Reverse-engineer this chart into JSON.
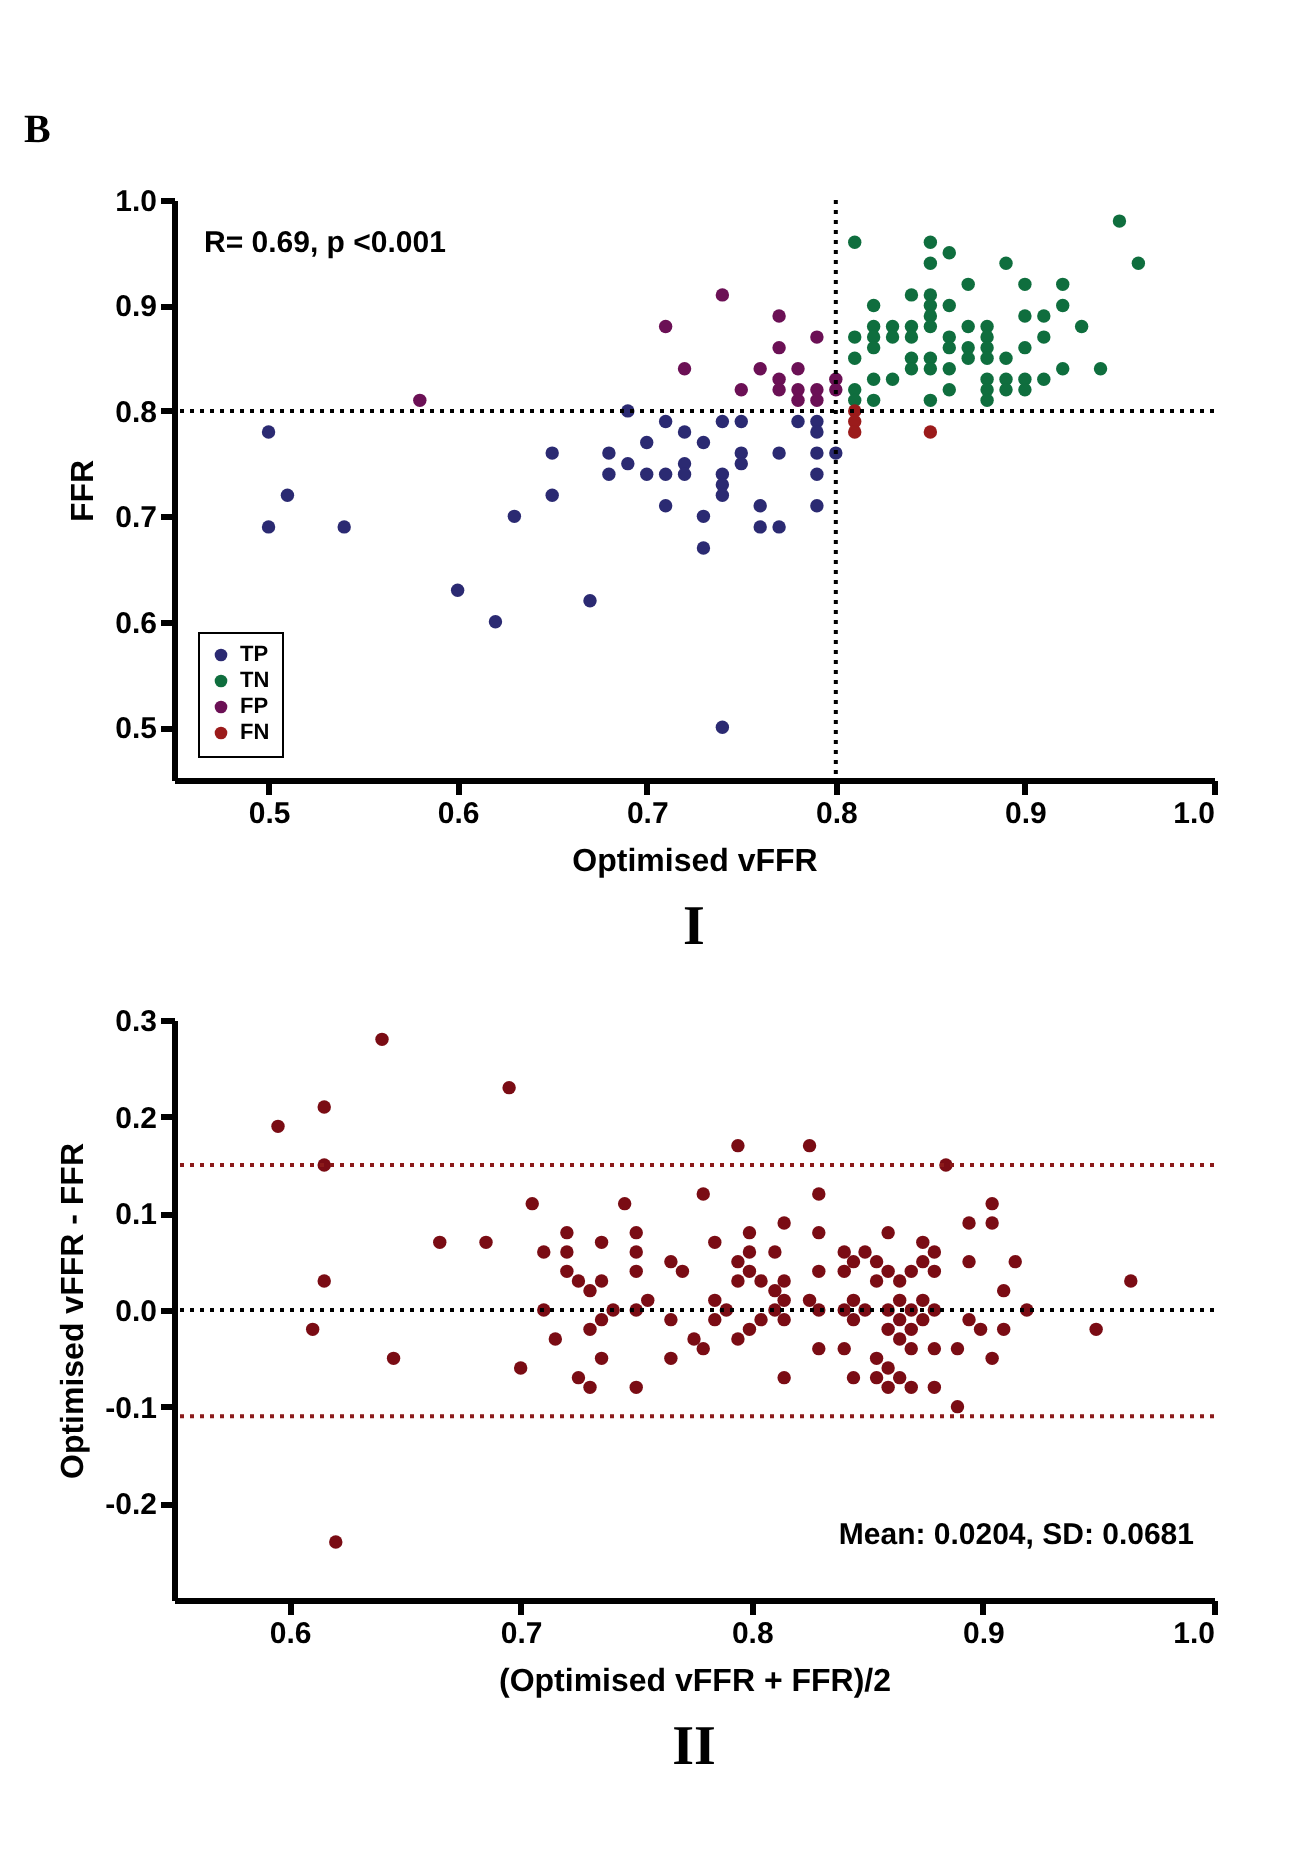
{
  "chart_data": [
    {
      "type": "scatter",
      "title": "I",
      "xlabel": "Optimised vFFR",
      "ylabel": "FFR",
      "xlim": [
        0.45,
        1.0
      ],
      "ylim": [
        0.45,
        1.0
      ],
      "xticks": [
        0.5,
        0.6,
        0.7,
        0.8,
        0.9,
        {
          "value": 1,
          "label": "1.0"
        }
      ],
      "yticks": [
        0.5,
        0.6,
        0.7,
        0.8,
        0.9,
        {
          "value": 1,
          "label": "1.0"
        }
      ],
      "grid": false,
      "legend": "bottom left",
      "marker": "circle",
      "annotations": [
        "B",
        "R= 0.69, p <0.001"
      ],
      "ref_lines": [
        {
          "axis": "x",
          "value": 0.8,
          "color": "#000000",
          "line_style": "dotted"
        },
        {
          "axis": "y",
          "value": 0.8,
          "color": "#000000",
          "line_style": "dotted"
        }
      ],
      "series": [
        {
          "name": "TP",
          "color": "#2b2a72",
          "x": [
            0.5,
            0.51,
            0.5,
            0.54,
            0.6,
            0.62,
            0.63,
            0.65,
            0.65,
            0.67,
            0.68,
            0.68,
            0.69,
            0.69,
            0.7,
            0.7,
            0.71,
            0.71,
            0.71,
            0.72,
            0.72,
            0.72,
            0.73,
            0.73,
            0.73,
            0.74,
            0.74,
            0.74,
            0.74,
            0.74,
            0.75,
            0.75,
            0.75,
            0.76,
            0.76,
            0.77,
            0.77,
            0.78,
            0.79,
            0.79,
            0.79,
            0.8,
            0.79,
            0.79
          ],
          "values": [
            0.78,
            0.72,
            0.69,
            0.69,
            0.63,
            0.6,
            0.7,
            0.76,
            0.72,
            0.62,
            0.76,
            0.74,
            0.8,
            0.75,
            0.77,
            0.74,
            0.79,
            0.74,
            0.71,
            0.78,
            0.75,
            0.74,
            0.77,
            0.7,
            0.67,
            0.79,
            0.74,
            0.73,
            0.72,
            0.5,
            0.79,
            0.76,
            0.75,
            0.71,
            0.69,
            0.76,
            0.69,
            0.79,
            0.79,
            0.78,
            0.76,
            0.76,
            0.74,
            0.71
          ]
        },
        {
          "name": "TN",
          "color": "#0f6e3e",
          "x": [
            0.81,
            0.85,
            0.85,
            0.86,
            0.89,
            0.95,
            0.96,
            0.87,
            0.9,
            0.92,
            0.84,
            0.85,
            0.85,
            0.85,
            0.85,
            0.86,
            0.82,
            0.9,
            0.91,
            0.92,
            0.93,
            0.82,
            0.82,
            0.82,
            0.81,
            0.81,
            0.81,
            0.81,
            0.83,
            0.83,
            0.84,
            0.84,
            0.86,
            0.86,
            0.87,
            0.87,
            0.88,
            0.88,
            0.88,
            0.88,
            0.87,
            0.9,
            0.91,
            0.89,
            0.84,
            0.84,
            0.85,
            0.85,
            0.86,
            0.92,
            0.94,
            0.82,
            0.83,
            0.88,
            0.88,
            0.89,
            0.89,
            0.9,
            0.9,
            0.91,
            0.86,
            0.82,
            0.85,
            0.88
          ],
          "values": [
            0.96,
            0.96,
            0.94,
            0.95,
            0.94,
            0.98,
            0.94,
            0.92,
            0.92,
            0.92,
            0.91,
            0.91,
            0.9,
            0.89,
            0.88,
            0.9,
            0.9,
            0.89,
            0.89,
            0.9,
            0.88,
            0.88,
            0.87,
            0.86,
            0.87,
            0.85,
            0.82,
            0.81,
            0.88,
            0.87,
            0.88,
            0.87,
            0.87,
            0.86,
            0.88,
            0.86,
            0.88,
            0.87,
            0.86,
            0.85,
            0.85,
            0.86,
            0.87,
            0.85,
            0.85,
            0.84,
            0.85,
            0.84,
            0.84,
            0.84,
            0.84,
            0.83,
            0.83,
            0.83,
            0.82,
            0.83,
            0.82,
            0.83,
            0.82,
            0.83,
            0.82,
            0.81,
            0.81,
            0.81
          ]
        },
        {
          "name": "FP",
          "color": "#6b1055",
          "x": [
            0.58,
            0.74,
            0.71,
            0.77,
            0.79,
            0.77,
            0.72,
            0.76,
            0.78,
            0.75,
            0.77,
            0.77,
            0.78,
            0.78,
            0.79,
            0.79,
            0.8,
            0.8
          ],
          "values": [
            0.81,
            0.91,
            0.88,
            0.89,
            0.87,
            0.86,
            0.84,
            0.84,
            0.84,
            0.82,
            0.83,
            0.82,
            0.82,
            0.81,
            0.82,
            0.81,
            0.83,
            0.82
          ]
        },
        {
          "name": "FN",
          "color": "#9b1b1b",
          "x": [
            0.81,
            0.81,
            0.81,
            0.85
          ],
          "values": [
            0.8,
            0.79,
            0.78,
            0.78
          ]
        }
      ]
    },
    {
      "type": "scatter",
      "title": "II",
      "xlabel": "(Optimised vFFR + FFR)/2",
      "ylabel": "Optimised vFFR - FFR",
      "xlim": [
        0.55,
        1.0
      ],
      "ylim": [
        -0.3,
        0.3
      ],
      "xticks": [
        0.6,
        0.7,
        0.8,
        0.9,
        {
          "value": 1,
          "label": "1.0"
        }
      ],
      "yticks": [
        -0.2,
        -0.1,
        {
          "value": 0,
          "label": "0.0"
        },
        0.1,
        0.2,
        0.3
      ],
      "grid": false,
      "legend": false,
      "marker": "circle",
      "annotations": [
        "Mean: 0.0204, SD: 0.0681"
      ],
      "ref_lines": [
        {
          "axis": "y",
          "value": 0.0,
          "color": "#000000",
          "line_style": "dotted"
        },
        {
          "axis": "y",
          "value": 0.15,
          "color": "#8b1a1a",
          "line_style": "dotted"
        },
        {
          "axis": "y",
          "value": -0.11,
          "color": "#8b1a1a",
          "line_style": "dotted"
        }
      ],
      "series": [
        {
          "color": "#7a0c14",
          "x": [
            0.64,
            0.595,
            0.615,
            0.695,
            0.615,
            0.615,
            0.61,
            0.645,
            0.62,
            0.665,
            0.685,
            0.705,
            0.71,
            0.71,
            0.7,
            0.715,
            0.72,
            0.72,
            0.72,
            0.725,
            0.73,
            0.735,
            0.735,
            0.74,
            0.735,
            0.73,
            0.735,
            0.725,
            0.73,
            0.745,
            0.75,
            0.75,
            0.75,
            0.75,
            0.755,
            0.75,
            0.765,
            0.77,
            0.765,
            0.765,
            0.775,
            0.779,
            0.794,
            0.825,
            0.884,
            0.779,
            0.829,
            0.814,
            0.799,
            0.829,
            0.859,
            0.784,
            0.874,
            0.799,
            0.81,
            0.84,
            0.849,
            0.879,
            0.894,
            0.904,
            0.904,
            0.794,
            0.844,
            0.854,
            0.874,
            0.894,
            0.914,
            0.799,
            0.829,
            0.84,
            0.859,
            0.869,
            0.879,
            0.794,
            0.804,
            0.814,
            0.854,
            0.864,
            0.964,
            0.81,
            0.909,
            0.784,
            0.814,
            0.825,
            0.844,
            0.864,
            0.874,
            0.789,
            0.81,
            0.829,
            0.84,
            0.849,
            0.859,
            0.869,
            0.879,
            0.919,
            0.784,
            0.804,
            0.814,
            0.844,
            0.864,
            0.874,
            0.894,
            0.799,
            0.859,
            0.869,
            0.899,
            0.909,
            0.949,
            0.794,
            0.864,
            0.829,
            0.84,
            0.869,
            0.879,
            0.889,
            0.854,
            0.904,
            0.859,
            0.814,
            0.844,
            0.854,
            0.864,
            0.859,
            0.869,
            0.879,
            0.889
          ],
          "values": [
            0.28,
            0.19,
            0.21,
            0.23,
            0.15,
            0.03,
            -0.02,
            -0.05,
            -0.24,
            0.07,
            0.07,
            0.11,
            0.06,
            0.0,
            -0.06,
            -0.03,
            0.08,
            0.06,
            0.04,
            0.03,
            0.02,
            0.07,
            0.03,
            0.0,
            -0.01,
            -0.02,
            -0.05,
            -0.07,
            -0.08,
            0.11,
            0.08,
            0.06,
            0.04,
            0.0,
            0.01,
            -0.08,
            0.05,
            0.04,
            -0.01,
            -0.05,
            -0.03,
            -0.04,
            0.17,
            0.17,
            0.15,
            0.12,
            0.12,
            0.09,
            0.08,
            0.08,
            0.08,
            0.07,
            0.07,
            0.06,
            0.06,
            0.06,
            0.06,
            0.06,
            0.09,
            0.09,
            0.11,
            0.05,
            0.05,
            0.05,
            0.05,
            0.05,
            0.05,
            0.04,
            0.04,
            0.04,
            0.04,
            0.04,
            0.04,
            0.03,
            0.03,
            0.03,
            0.03,
            0.03,
            0.03,
            0.02,
            0.02,
            0.01,
            0.01,
            0.01,
            0.01,
            0.01,
            0.01,
            0.0,
            0.0,
            0.0,
            0.0,
            0.0,
            0.0,
            0.0,
            0.0,
            0.0,
            -0.01,
            -0.01,
            -0.01,
            -0.01,
            -0.01,
            -0.01,
            -0.01,
            -0.02,
            -0.02,
            -0.02,
            -0.02,
            -0.02,
            -0.02,
            -0.03,
            -0.03,
            -0.04,
            -0.04,
            -0.04,
            -0.04,
            -0.04,
            -0.05,
            -0.05,
            -0.06,
            -0.07,
            -0.07,
            -0.07,
            -0.07,
            -0.08,
            -0.08,
            -0.08,
            -0.1
          ]
        }
      ]
    }
  ]
}
